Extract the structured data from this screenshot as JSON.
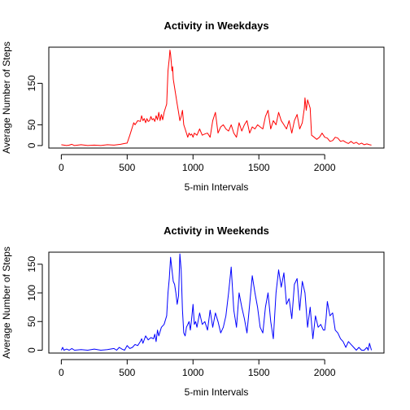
{
  "chart_data": [
    {
      "type": "line",
      "title": "Activity in Weekdays",
      "xlabel": "5-min Intervals",
      "ylabel": "Average Number of Steps",
      "xlim": [
        0,
        2355
      ],
      "ylim": [
        0,
        230
      ],
      "xticks": [
        0,
        500,
        1000,
        1500,
        2000
      ],
      "yticks": [
        0,
        50,
        150
      ],
      "grid": false,
      "color": "#ff0000",
      "series": [
        {
          "x": [
            0,
            20,
            40,
            60,
            80,
            100,
            150,
            200,
            250,
            300,
            350,
            400,
            450,
            480,
            500,
            520,
            540,
            550,
            560,
            580,
            600,
            610,
            620,
            630,
            640,
            650,
            660,
            670,
            680,
            690,
            700,
            710,
            720,
            730,
            740,
            750,
            760,
            770,
            780,
            790,
            800,
            810,
            820,
            825,
            830,
            835,
            840,
            845,
            850,
            860,
            870,
            880,
            890,
            900,
            910,
            920,
            930,
            940,
            950,
            960,
            970,
            980,
            990,
            1000,
            1010,
            1030,
            1050,
            1070,
            1090,
            1110,
            1130,
            1150,
            1170,
            1190,
            1210,
            1230,
            1250,
            1270,
            1290,
            1310,
            1330,
            1350,
            1370,
            1390,
            1410,
            1430,
            1450,
            1470,
            1490,
            1510,
            1530,
            1550,
            1570,
            1590,
            1610,
            1630,
            1650,
            1670,
            1690,
            1710,
            1730,
            1750,
            1770,
            1790,
            1810,
            1830,
            1845,
            1850,
            1860,
            1870,
            1880,
            1890,
            1900,
            1920,
            1940,
            1960,
            1980,
            2000,
            2020,
            2040,
            2060,
            2080,
            2100,
            2120,
            2140,
            2160,
            2180,
            2200,
            2220,
            2240,
            2260,
            2280,
            2300,
            2320,
            2340,
            2355
          ],
          "y": [
            2,
            1,
            0,
            1,
            3,
            0,
            2,
            0,
            1,
            0,
            2,
            1,
            3,
            5,
            6,
            25,
            45,
            55,
            50,
            60,
            58,
            72,
            60,
            65,
            55,
            65,
            58,
            60,
            70,
            62,
            65,
            58,
            72,
            62,
            80,
            60,
            75,
            62,
            80,
            90,
            100,
            180,
            210,
            230,
            220,
            200,
            180,
            190,
            160,
            140,
            120,
            100,
            80,
            60,
            70,
            85,
            50,
            40,
            30,
            20,
            30,
            25,
            28,
            20,
            30,
            25,
            40,
            25,
            28,
            30,
            20,
            60,
            80,
            30,
            45,
            50,
            40,
            35,
            50,
            30,
            20,
            55,
            35,
            50,
            60,
            30,
            45,
            40,
            50,
            45,
            40,
            70,
            85,
            40,
            60,
            50,
            80,
            60,
            50,
            40,
            60,
            30,
            60,
            75,
            40,
            55,
            90,
            115,
            85,
            110,
            100,
            90,
            25,
            20,
            15,
            20,
            30,
            20,
            18,
            10,
            12,
            20,
            18,
            10,
            12,
            8,
            5,
            10,
            5,
            8,
            3,
            6,
            2,
            4,
            2,
            1
          ]
        }
      ]
    },
    {
      "type": "line",
      "title": "Activity in Weekends",
      "xlabel": "5-min Intervals",
      "ylabel": "Average Number of Steps",
      "xlim": [
        0,
        2355
      ],
      "ylim": [
        0,
        170
      ],
      "xticks": [
        0,
        500,
        1000,
        1500,
        2000
      ],
      "yticks": [
        0,
        50,
        100,
        150
      ],
      "grid": false,
      "color": "#0000ff",
      "series": [
        {
          "x": [
            0,
            10,
            20,
            40,
            60,
            80,
            100,
            150,
            200,
            250,
            300,
            350,
            400,
            420,
            440,
            460,
            480,
            500,
            520,
            540,
            560,
            580,
            600,
            610,
            620,
            640,
            660,
            680,
            700,
            710,
            720,
            730,
            740,
            760,
            780,
            800,
            810,
            820,
            830,
            840,
            850,
            860,
            870,
            880,
            890,
            900,
            910,
            920,
            930,
            940,
            950,
            960,
            970,
            980,
            990,
            1000,
            1010,
            1020,
            1030,
            1050,
            1070,
            1090,
            1110,
            1130,
            1150,
            1170,
            1190,
            1210,
            1230,
            1250,
            1270,
            1290,
            1310,
            1330,
            1350,
            1370,
            1390,
            1410,
            1430,
            1450,
            1470,
            1490,
            1510,
            1530,
            1550,
            1570,
            1590,
            1610,
            1630,
            1650,
            1670,
            1690,
            1710,
            1730,
            1750,
            1770,
            1790,
            1810,
            1830,
            1850,
            1870,
            1890,
            1910,
            1930,
            1950,
            1970,
            1990,
            2000,
            2010,
            2020,
            2040,
            2060,
            2080,
            2100,
            2120,
            2140,
            2160,
            2180,
            2200,
            2220,
            2240,
            2260,
            2280,
            2300,
            2320,
            2330,
            2340,
            2355
          ],
          "y": [
            0,
            5,
            0,
            2,
            0,
            3,
            0,
            1,
            0,
            2,
            0,
            1,
            3,
            0,
            5,
            2,
            0,
            8,
            3,
            5,
            10,
            8,
            15,
            20,
            12,
            25,
            18,
            22,
            20,
            28,
            15,
            35,
            25,
            40,
            45,
            60,
            100,
            125,
            162,
            140,
            120,
            115,
            100,
            80,
            95,
            168,
            140,
            70,
            30,
            25,
            40,
            45,
            50,
            35,
            55,
            80,
            45,
            50,
            40,
            65,
            45,
            50,
            35,
            70,
            40,
            65,
            50,
            30,
            40,
            60,
            100,
            145,
            70,
            40,
            100,
            75,
            55,
            30,
            80,
            130,
            100,
            75,
            40,
            30,
            75,
            100,
            50,
            20,
            100,
            140,
            110,
            135,
            80,
            90,
            55,
            115,
            125,
            70,
            120,
            100,
            40,
            75,
            20,
            60,
            40,
            45,
            35,
            35,
            55,
            85,
            60,
            65,
            35,
            30,
            20,
            15,
            5,
            15,
            10,
            5,
            0,
            5,
            0,
            0,
            5,
            0,
            12,
            0
          ]
        }
      ]
    }
  ]
}
